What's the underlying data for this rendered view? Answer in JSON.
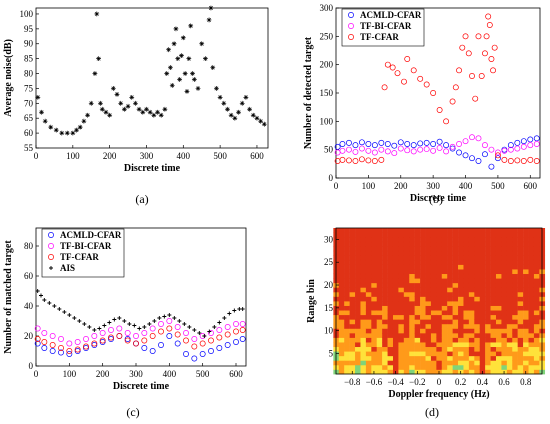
{
  "chart_data": [
    {
      "id": "a",
      "caption": "(a)",
      "type": "scatter",
      "xlabel": "Discrete time",
      "ylabel": "Average noise(dB)",
      "xlim": [
        0,
        630
      ],
      "ylim": [
        55,
        102
      ],
      "xticks": [
        0,
        100,
        200,
        300,
        400,
        500,
        600
      ],
      "yticks": [
        55,
        60,
        65,
        70,
        75,
        80,
        85,
        90,
        95,
        100
      ],
      "grid": false,
      "marker": "asterisk",
      "color": "#000000",
      "series": [
        {
          "x": [
            5,
            15,
            25,
            40,
            55,
            70,
            85,
            100,
            110,
            120,
            130,
            140,
            150,
            160,
            165,
            170,
            175,
            180,
            190,
            200,
            210,
            220,
            230,
            240,
            250,
            260,
            270,
            280,
            290,
            300,
            310,
            320,
            330,
            340,
            350,
            355,
            360,
            365,
            370,
            375,
            380,
            385,
            390,
            395,
            400,
            405,
            410,
            415,
            420,
            425,
            430,
            440,
            450,
            460,
            470,
            475,
            480,
            490,
            500,
            510,
            520,
            530,
            540,
            550,
            560,
            570,
            580,
            590,
            600,
            610,
            620
          ],
          "y": [
            72,
            67,
            64,
            62,
            61,
            60,
            60,
            60,
            61,
            62,
            64,
            66,
            70,
            80,
            100,
            85,
            70,
            68,
            67,
            66,
            75,
            73,
            70,
            68,
            69,
            72,
            70,
            68,
            67,
            68,
            67,
            66,
            67,
            66,
            68,
            80,
            88,
            82,
            76,
            90,
            95,
            85,
            78,
            86,
            92,
            80,
            74,
            85,
            96,
            80,
            78,
            75,
            90,
            85,
            98,
            102,
            82,
            75,
            72,
            70,
            68,
            66,
            65,
            67,
            70,
            72,
            68,
            66,
            65,
            64,
            63
          ]
        }
      ]
    },
    {
      "id": "b",
      "caption": "(b)",
      "type": "scatter",
      "xlabel": "Discrete time",
      "ylabel": "Number of detected target",
      "xlim": [
        0,
        630
      ],
      "ylim": [
        0,
        300
      ],
      "xticks": [
        0,
        100,
        200,
        300,
        400,
        500,
        600
      ],
      "yticks": [
        0,
        50,
        100,
        150,
        200,
        250,
        300
      ],
      "grid": false,
      "legend_position": "top-left",
      "marker": "circle",
      "series": [
        {
          "name": "ACMLD-CFAR",
          "color": "#0000ff",
          "x": [
            5,
            20,
            40,
            60,
            80,
            100,
            120,
            140,
            160,
            180,
            200,
            220,
            240,
            260,
            280,
            300,
            320,
            340,
            360,
            380,
            400,
            420,
            440,
            460,
            480,
            500,
            520,
            540,
            560,
            580,
            600,
            620
          ],
          "y": [
            55,
            60,
            62,
            58,
            63,
            60,
            58,
            62,
            60,
            57,
            63,
            60,
            58,
            61,
            62,
            60,
            64,
            58,
            52,
            45,
            40,
            35,
            30,
            42,
            20,
            35,
            50,
            58,
            62,
            65,
            68,
            70
          ]
        },
        {
          "name": "TF-BI-CFAR",
          "color": "#ff00ff",
          "x": [
            5,
            20,
            40,
            60,
            80,
            100,
            120,
            140,
            160,
            180,
            200,
            220,
            240,
            260,
            280,
            300,
            320,
            340,
            360,
            380,
            400,
            420,
            440,
            460,
            480,
            500,
            520,
            540,
            560,
            580,
            600,
            620
          ],
          "y": [
            45,
            48,
            50,
            46,
            52,
            48,
            45,
            50,
            47,
            44,
            52,
            49,
            47,
            50,
            51,
            48,
            53,
            47,
            55,
            60,
            65,
            72,
            70,
            58,
            50,
            45,
            48,
            50,
            52,
            55,
            58,
            60
          ]
        },
        {
          "name": "TF-CFAR",
          "color": "#ff0000",
          "x": [
            5,
            20,
            40,
            60,
            80,
            100,
            120,
            140,
            150,
            160,
            175,
            190,
            210,
            220,
            240,
            260,
            280,
            300,
            320,
            340,
            360,
            370,
            380,
            390,
            400,
            410,
            420,
            430,
            440,
            450,
            460,
            465,
            470,
            475,
            480,
            485,
            490,
            500,
            520,
            540,
            560,
            580,
            600,
            620
          ],
          "y": [
            30,
            32,
            31,
            30,
            33,
            31,
            30,
            32,
            160,
            200,
            195,
            185,
            170,
            210,
            190,
            175,
            165,
            150,
            120,
            100,
            135,
            160,
            190,
            230,
            250,
            220,
            180,
            140,
            250,
            180,
            220,
            250,
            285,
            270,
            210,
            190,
            230,
            40,
            32,
            30,
            31,
            30,
            32,
            30
          ]
        }
      ]
    },
    {
      "id": "c",
      "caption": "(c)",
      "type": "scatter",
      "xlabel": "Discrete time",
      "ylabel": "Number of matched target",
      "xlim": [
        0,
        630
      ],
      "ylim": [
        0,
        92
      ],
      "xticks": [
        0,
        100,
        200,
        300,
        400,
        500,
        600
      ],
      "yticks": [
        0,
        20,
        40,
        60,
        80
      ],
      "grid": false,
      "legend_position": "top-left",
      "series": [
        {
          "name": "ACMLD-CFAR",
          "color": "#0000ff",
          "marker": "circle",
          "x": [
            5,
            25,
            50,
            75,
            100,
            125,
            150,
            175,
            200,
            225,
            250,
            275,
            300,
            325,
            350,
            375,
            400,
            425,
            450,
            475,
            500,
            525,
            550,
            575,
            600,
            620
          ],
          "y": [
            15,
            12,
            10,
            9,
            8,
            10,
            12,
            14,
            16,
            18,
            20,
            18,
            15,
            12,
            10,
            14,
            20,
            15,
            8,
            5,
            8,
            10,
            12,
            14,
            16,
            18
          ]
        },
        {
          "name": "TF-BI-CFAR",
          "color": "#ff00ff",
          "marker": "circle",
          "x": [
            5,
            25,
            50,
            75,
            100,
            125,
            150,
            175,
            200,
            225,
            250,
            275,
            300,
            325,
            350,
            375,
            400,
            425,
            450,
            475,
            500,
            525,
            550,
            575,
            600,
            620
          ],
          "y": [
            25,
            22,
            20,
            18,
            15,
            16,
            18,
            20,
            22,
            24,
            25,
            22,
            20,
            22,
            25,
            28,
            30,
            26,
            22,
            18,
            20,
            22,
            24,
            26,
            28,
            28
          ]
        },
        {
          "name": "TF-CFAR",
          "color": "#ff0000",
          "marker": "circle",
          "x": [
            5,
            25,
            50,
            75,
            100,
            125,
            150,
            175,
            200,
            225,
            250,
            275,
            300,
            325,
            350,
            375,
            400,
            425,
            450,
            475,
            500,
            525,
            550,
            575,
            600,
            620
          ],
          "y": [
            18,
            16,
            14,
            12,
            10,
            11,
            13,
            15,
            17,
            19,
            20,
            17,
            15,
            17,
            20,
            23,
            25,
            21,
            17,
            13,
            15,
            17,
            19,
            21,
            23,
            24
          ]
        },
        {
          "name": "AIS",
          "color": "#000000",
          "marker": "plus",
          "x": [
            5,
            15,
            25,
            40,
            55,
            70,
            85,
            100,
            115,
            130,
            145,
            160,
            175,
            190,
            205,
            220,
            235,
            250,
            265,
            280,
            295,
            310,
            325,
            340,
            355,
            370,
            385,
            400,
            415,
            430,
            445,
            460,
            475,
            490,
            505,
            520,
            535,
            550,
            565,
            580,
            595,
            610,
            620
          ],
          "y": [
            50,
            47,
            44,
            42,
            40,
            38,
            36,
            34,
            32,
            30,
            28,
            26,
            24,
            25,
            27,
            29,
            31,
            32,
            30,
            28,
            27,
            25,
            26,
            28,
            30,
            32,
            33,
            34,
            32,
            30,
            28,
            26,
            24,
            22,
            20,
            23,
            26,
            29,
            32,
            35,
            37,
            38,
            38
          ]
        }
      ]
    },
    {
      "id": "d",
      "caption": "(d)",
      "type": "heatmap",
      "xlabel": "Doppler frequency (Hz)",
      "ylabel": "Range bin",
      "xlim": [
        -0.95,
        0.95
      ],
      "ylim": [
        0.5,
        32.5
      ],
      "xticks": [
        -0.8,
        -0.6,
        -0.4,
        -0.2,
        0,
        0.2,
        0.4,
        0.6,
        0.8
      ],
      "xticklabels": [
        "−0.8",
        "−0.6",
        "−0.4",
        "−0.2",
        "0",
        "0.2",
        "0.4",
        "0.6",
        "0.8"
      ],
      "yticks": [
        5,
        10,
        15,
        20,
        25,
        30
      ],
      "grid": false,
      "colormap": [
        "#00bcc9",
        "#7fd47a",
        "#ffe23a",
        "#ff9a1a",
        "#e03216"
      ],
      "x_columns": [
        -0.95,
        -0.9,
        -0.85,
        -0.8,
        -0.75,
        -0.7,
        -0.65,
        -0.6,
        -0.55,
        -0.5,
        -0.45,
        -0.4,
        -0.35,
        -0.3,
        -0.25,
        -0.2,
        -0.15,
        -0.1,
        -0.05,
        0,
        0.05,
        0.1,
        0.15,
        0.2,
        0.25,
        0.3,
        0.35,
        0.4,
        0.45,
        0.5,
        0.55,
        0.6,
        0.65,
        0.7,
        0.75,
        0.8,
        0.85,
        0.9,
        0.95
      ],
      "column_level": [
        0.4,
        0.5,
        0.6,
        0.55,
        0.5,
        0.45,
        0.5,
        0.6,
        0.55,
        0.6,
        0.7,
        0.95,
        0.7,
        0.6,
        0.55,
        0.5,
        0.55,
        0.6,
        0.65,
        0.8,
        0.65,
        0.6,
        0.55,
        0.5,
        0.55,
        0.6,
        0.7,
        0.95,
        0.75,
        0.6,
        0.55,
        0.5,
        0.55,
        0.6,
        0.55,
        0.5,
        0.6,
        0.55,
        0.45
      ]
    }
  ]
}
